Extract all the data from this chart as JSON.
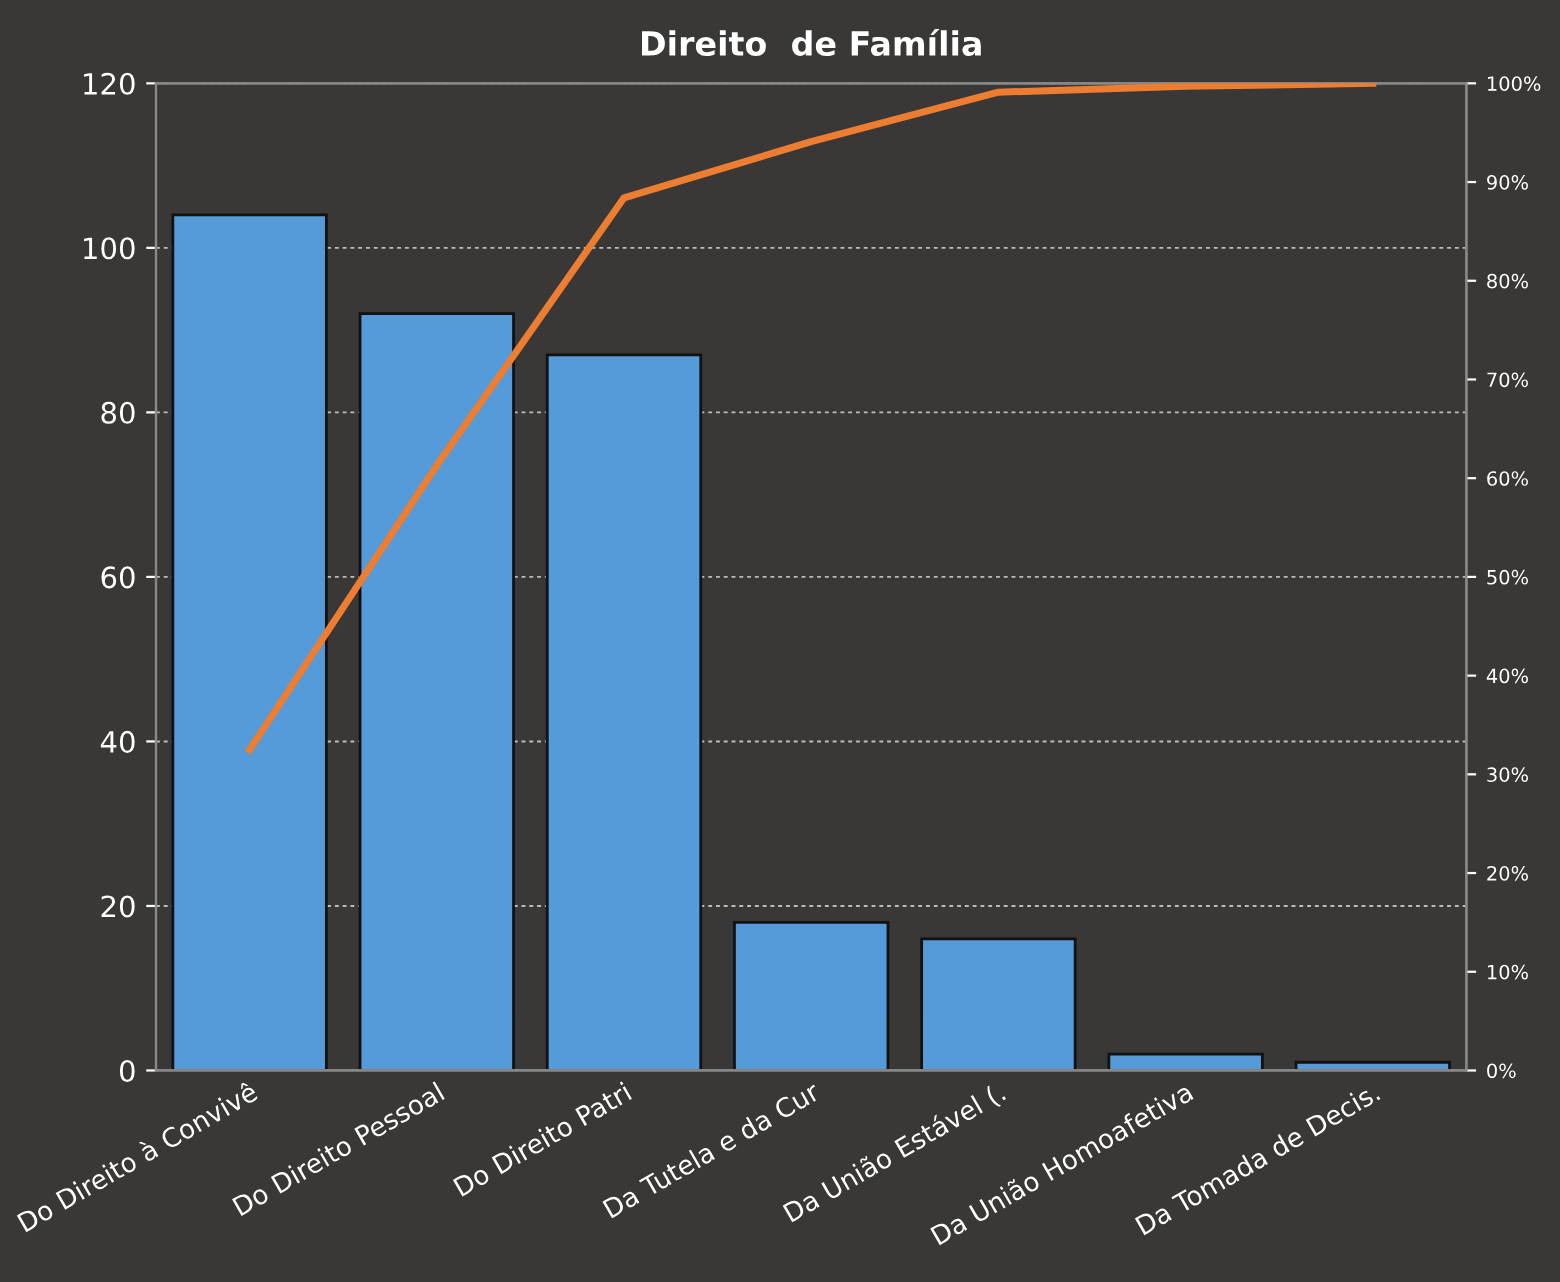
{
  "chart_data": {
    "type": "bar",
    "title": "Direito  de Família",
    "categories": [
      "Do Direito à Convivê",
      "Do Direito Pessoal",
      "Do Direito Patri",
      "Da Tutela e da Cur",
      "Da União Estável (.",
      "Da União Homoafetiva",
      "Da Tomada de Decis."
    ],
    "series": [
      {
        "color": "#559ad9",
        "values": [
          104,
          92,
          87,
          18,
          16,
          2,
          1
        ]
      },
      {
        "type": "line",
        "axis": "y2",
        "color": "#ed7d31",
        "values": [
          32.5,
          61.3,
          88.4,
          94.1,
          99.1,
          99.7,
          100
        ]
      }
    ],
    "ylim": [
      0,
      120
    ],
    "yticks": [
      0,
      20,
      40,
      60,
      80,
      100,
      120
    ],
    "y2lim": [
      0,
      100
    ],
    "y2ticks": [
      {
        "value": 0,
        "label": "0%"
      },
      {
        "value": 10,
        "label": "10%"
      },
      {
        "value": 20,
        "label": "20%"
      },
      {
        "value": 30,
        "label": "30%"
      },
      {
        "value": 40,
        "label": "40%"
      },
      {
        "value": 50,
        "label": "50%"
      },
      {
        "value": 60,
        "label": "60%"
      },
      {
        "value": 70,
        "label": "70%"
      },
      {
        "value": 80,
        "label": "80%"
      },
      {
        "value": 90,
        "label": "90%"
      },
      {
        "value": 100,
        "label": "100%"
      }
    ],
    "grid": "y"
  }
}
